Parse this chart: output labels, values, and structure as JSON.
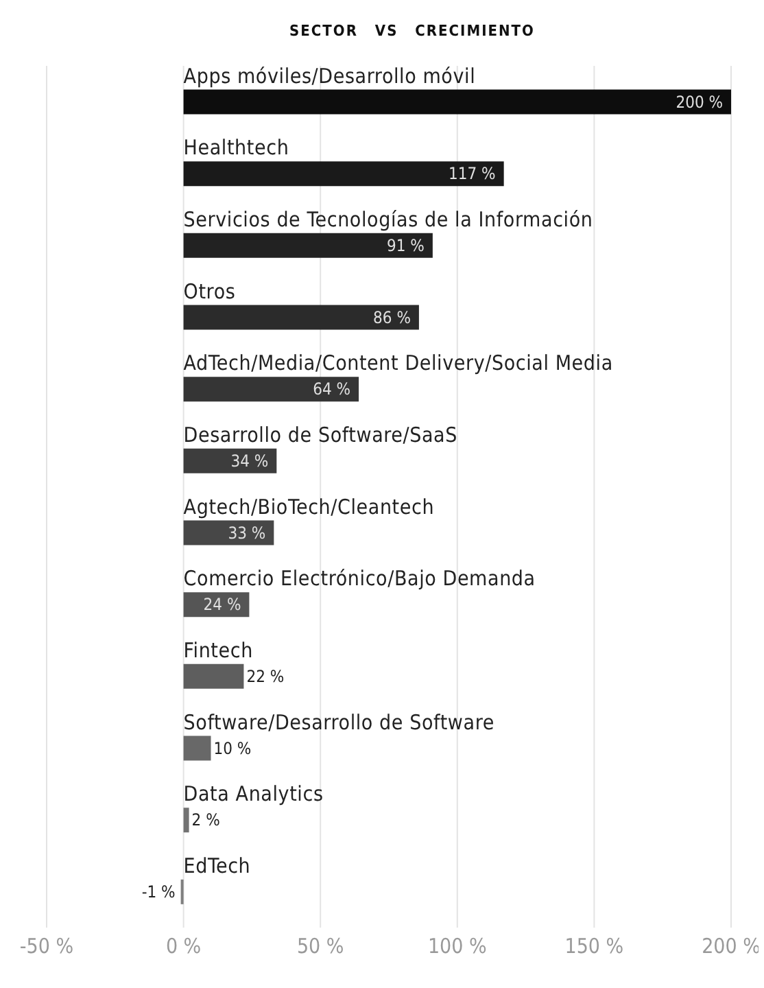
{
  "chart_data": {
    "type": "bar",
    "orientation": "horizontal",
    "title": "SECTOR VS CRECIMIENTO",
    "categories": [
      "Apps móviles/Desarrollo móvil",
      "Healthtech",
      "Servicios de Tecnologías de la Información",
      "Otros",
      "AdTech/Media/Content Delivery/Social Media",
      "Desarrollo de Software/SaaS",
      "Agtech/BioTech/Cleantech",
      "Comercio Electrónico/Bajo Demanda",
      "Fintech",
      "Software/Desarrollo de Software",
      "Data Analytics",
      "EdTech"
    ],
    "values": [
      200,
      117,
      91,
      86,
      64,
      34,
      33,
      24,
      22,
      10,
      2,
      -1
    ],
    "value_labels": [
      "200 %",
      "117 %",
      "91 %",
      "86 %",
      "64 %",
      "34 %",
      "33 %",
      "24 %",
      "22 %",
      "10 %",
      "2 %",
      "-1 %"
    ],
    "colors": [
      "#0d0d0d",
      "#1a1a1a",
      "#222222",
      "#2b2b2b",
      "#353535",
      "#3d3d3d",
      "#474747",
      "#555555",
      "#5e5e5e",
      "#686868",
      "#727272",
      "#7f7f7f"
    ],
    "xlim": [
      -50,
      200
    ],
    "xticks": [
      {
        "value": -50,
        "label": "-50 %"
      },
      {
        "value": 0,
        "label": "0 %"
      },
      {
        "value": 50,
        "label": "50 %"
      },
      {
        "value": 100,
        "label": "100 %"
      },
      {
        "value": 150,
        "label": "150 %"
      },
      {
        "value": 200,
        "label": "200 %"
      }
    ],
    "grid": "x"
  }
}
